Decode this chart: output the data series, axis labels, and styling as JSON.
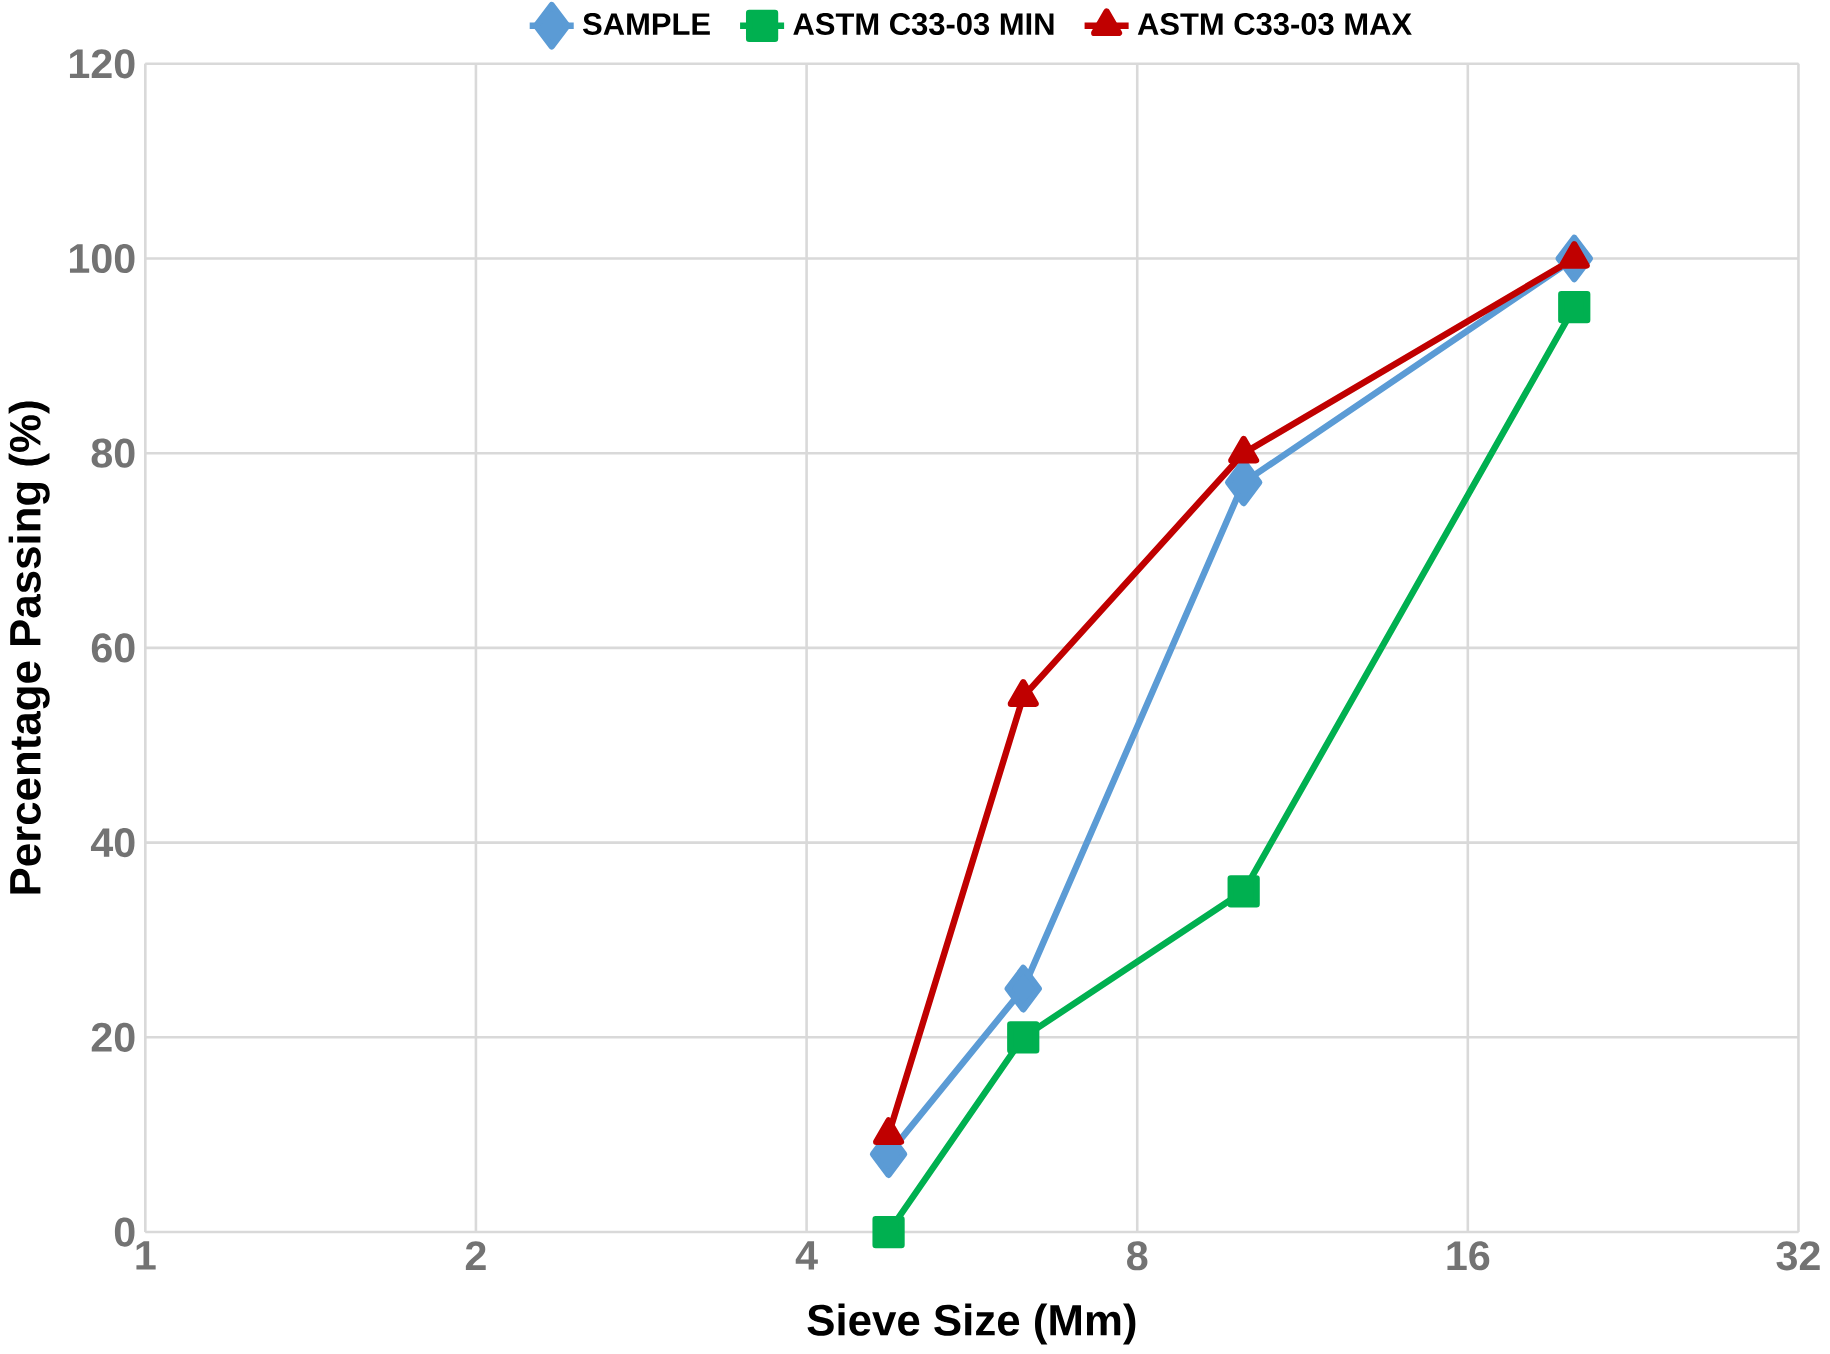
{
  "chart_data": {
    "type": "line",
    "xlabel": "Sieve Size (Mm)",
    "ylabel": "Percentage Passing (%)",
    "log": "x",
    "xlim": [
      1,
      32
    ],
    "xticks": [
      1,
      2,
      4,
      8,
      16,
      32
    ],
    "ylim": [
      0,
      120
    ],
    "yticks": [
      0,
      20,
      40,
      60,
      80,
      100,
      120
    ],
    "grid": true,
    "legend": "top",
    "x": [
      4.75,
      6.3,
      10,
      20
    ],
    "series": [
      {
        "name": "SAMPLE",
        "color": "#5b9bd5",
        "marker": "diamond",
        "values": [
          8,
          25,
          77,
          100
        ]
      },
      {
        "name": "ASTM C33-03 MIN",
        "color": "#00b050",
        "marker": "square",
        "values": [
          0,
          20,
          35,
          95
        ]
      },
      {
        "name": "ASTM C33-03 MAX",
        "color": "#c00000",
        "marker": "triangle",
        "values": [
          10,
          55,
          80,
          100
        ]
      }
    ]
  }
}
